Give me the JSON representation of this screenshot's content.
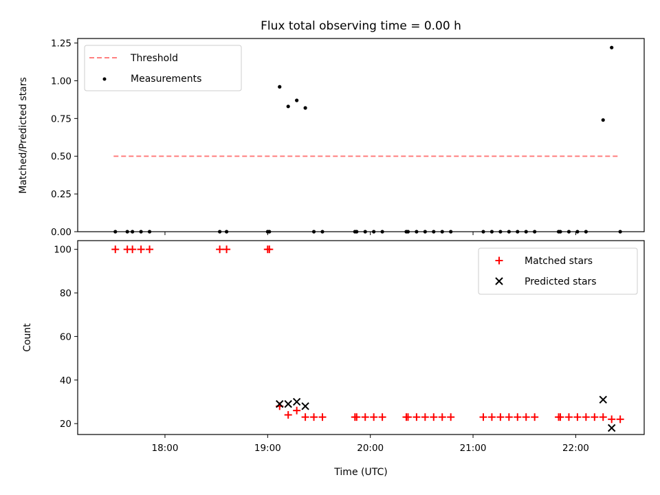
{
  "chart_data": [
    {
      "type": "scatter",
      "title": "Flux total observing time = 0.00 h",
      "xlabel": "",
      "ylabel": "Matched/Predicted stars",
      "ylim": [
        0,
        1.28
      ],
      "yticks": [
        "0.00",
        "0.25",
        "0.50",
        "0.75",
        "1.00",
        "1.25"
      ],
      "xticks": [
        "18:00",
        "19:00",
        "20:00",
        "21:00",
        "22:00"
      ],
      "grid": false,
      "legend_position": "top-left",
      "threshold": {
        "name": "Threshold",
        "color": "#ff7f7f",
        "y": 0.5,
        "x_start": "17:30",
        "x_end": "22:26"
      },
      "series": [
        {
          "name": "Measurements",
          "color": "#000000",
          "points": [
            [
              "17:31",
              0
            ],
            [
              "17:38",
              0
            ],
            [
              "17:41",
              0
            ],
            [
              "17:46",
              0
            ],
            [
              "17:51",
              0
            ],
            [
              "18:32",
              0
            ],
            [
              "18:36",
              0
            ],
            [
              "19:00",
              0
            ],
            [
              "19:01",
              0
            ],
            [
              "19:07",
              0.96
            ],
            [
              "19:12",
              0.83
            ],
            [
              "19:17",
              0.87
            ],
            [
              "19:22",
              0.82
            ],
            [
              "19:27",
              0
            ],
            [
              "19:32",
              0
            ],
            [
              "19:51",
              0
            ],
            [
              "19:52",
              0
            ],
            [
              "19:57",
              0
            ],
            [
              "20:02",
              0
            ],
            [
              "20:07",
              0
            ],
            [
              "20:21",
              0
            ],
            [
              "20:22",
              0
            ],
            [
              "20:27",
              0
            ],
            [
              "20:32",
              0
            ],
            [
              "20:37",
              0
            ],
            [
              "20:42",
              0
            ],
            [
              "20:47",
              0
            ],
            [
              "21:06",
              0
            ],
            [
              "21:11",
              0
            ],
            [
              "21:16",
              0
            ],
            [
              "21:21",
              0
            ],
            [
              "21:26",
              0
            ],
            [
              "21:31",
              0
            ],
            [
              "21:36",
              0
            ],
            [
              "21:50",
              0
            ],
            [
              "21:51",
              0
            ],
            [
              "21:56",
              0
            ],
            [
              "22:01",
              0
            ],
            [
              "22:06",
              0
            ],
            [
              "22:16",
              0.74
            ],
            [
              "22:21",
              1.22
            ],
            [
              "22:26",
              0
            ]
          ]
        }
      ]
    },
    {
      "type": "scatter",
      "title": "",
      "xlabel": "Time (UTC)",
      "ylabel": "Count",
      "ylim": [
        15,
        104
      ],
      "yticks": [
        "20",
        "40",
        "60",
        "80",
        "100"
      ],
      "xticks": [
        "18:00",
        "19:00",
        "20:00",
        "21:00",
        "22:00"
      ],
      "grid": false,
      "legend_position": "top-right",
      "series": [
        {
          "name": "Matched stars",
          "color": "#ff0000",
          "marker": "+",
          "points": [
            [
              "17:31",
              100
            ],
            [
              "17:38",
              100
            ],
            [
              "17:41",
              100
            ],
            [
              "17:46",
              100
            ],
            [
              "17:51",
              100
            ],
            [
              "18:32",
              100
            ],
            [
              "18:36",
              100
            ],
            [
              "19:00",
              100
            ],
            [
              "19:01",
              100
            ],
            [
              "19:07",
              28
            ],
            [
              "19:12",
              24
            ],
            [
              "19:17",
              26
            ],
            [
              "19:22",
              23
            ],
            [
              "19:27",
              23
            ],
            [
              "19:32",
              23
            ],
            [
              "19:51",
              23
            ],
            [
              "19:52",
              23
            ],
            [
              "19:57",
              23
            ],
            [
              "20:02",
              23
            ],
            [
              "20:07",
              23
            ],
            [
              "20:21",
              23
            ],
            [
              "20:22",
              23
            ],
            [
              "20:27",
              23
            ],
            [
              "20:32",
              23
            ],
            [
              "20:37",
              23
            ],
            [
              "20:42",
              23
            ],
            [
              "20:47",
              23
            ],
            [
              "21:06",
              23
            ],
            [
              "21:11",
              23
            ],
            [
              "21:16",
              23
            ],
            [
              "21:21",
              23
            ],
            [
              "21:26",
              23
            ],
            [
              "21:31",
              23
            ],
            [
              "21:36",
              23
            ],
            [
              "21:50",
              23
            ],
            [
              "21:51",
              23
            ],
            [
              "21:56",
              23
            ],
            [
              "22:01",
              23
            ],
            [
              "22:06",
              23
            ],
            [
              "22:11",
              23
            ],
            [
              "22:16",
              23
            ],
            [
              "22:21",
              22
            ],
            [
              "22:26",
              22
            ]
          ]
        },
        {
          "name": "Predicted stars",
          "color": "#000000",
          "marker": "x",
          "points": [
            [
              "19:07",
              29
            ],
            [
              "19:12",
              29
            ],
            [
              "19:17",
              30
            ],
            [
              "19:22",
              28
            ],
            [
              "22:16",
              31
            ],
            [
              "22:21",
              18
            ]
          ]
        }
      ]
    }
  ]
}
